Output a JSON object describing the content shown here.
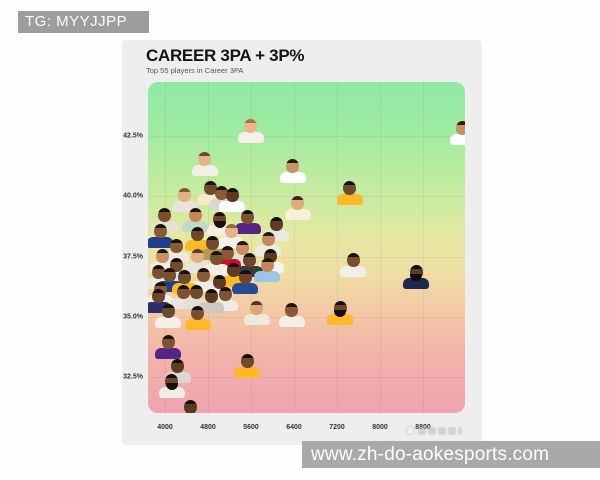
{
  "badge": {
    "text": "TG: MYYJJPP"
  },
  "header": {
    "title": "CAREER 3PA + 3P%",
    "subtitle": "Top 55 players in Career 3PA"
  },
  "url_bar": {
    "text": "www.zh-do-aokesports.com"
  },
  "colors": {
    "page_bg": "#fdfdfd",
    "card_bg": "#eeeeee",
    "badge_bg": "#9d9d9d",
    "url_bar_bg": "#a9a9a9",
    "gradient_top_green": "#8fe9a5",
    "gradient_mid_yellow": "#e5e8a2",
    "gradient_bottom_pink": "#f0a3b2"
  },
  "chart_data": {
    "type": "scatter",
    "title": "CAREER 3PA + 3P%",
    "subtitle": "Top 55 players in Career 3PA",
    "xlabel": "",
    "ylabel": "",
    "marker": "player-headshot",
    "grid": true,
    "legend": false,
    "xlim": [
      3684,
      9581
    ],
    "ylim": [
      31.0,
      44.75
    ],
    "x_tick_labels": [
      "4000",
      "4800",
      "5600",
      "6400",
      "7200",
      "8000",
      "8800"
    ],
    "x_ticks": [
      4000,
      4800,
      5600,
      6400,
      7200,
      8000,
      8800
    ],
    "y_tick_labels": [
      "42.5%",
      "40.0%",
      "37.5%",
      "35.0%",
      "32.5%"
    ],
    "y_ticks": [
      42.5,
      40.0,
      37.5,
      35.0,
      32.5
    ],
    "points": [
      {
        "x": 5600,
        "y": 42.9,
        "skin": "#e8b88a",
        "hair": "#a9743c",
        "jersey": "#f5f0e8"
      },
      {
        "x": 9540,
        "y": 42.8,
        "skin": "#c89064",
        "hair": "#2a1c12",
        "jersey": "#ffffff"
      },
      {
        "x": 4740,
        "y": 41.5,
        "skin": "#e5b489",
        "hair": "#6b4a2e",
        "jersey": "#f2efe9"
      },
      {
        "x": 6380,
        "y": 41.2,
        "skin": "#c79468",
        "hair": "#231a12",
        "jersey": "#ffffff"
      },
      {
        "x": 4370,
        "y": 40.0,
        "skin": "#e3b184",
        "hair": "#7a5b37",
        "jersey": "#e8e4dc"
      },
      {
        "x": 4840,
        "y": 40.3,
        "skin": "#6e4a2e",
        "hair": "#1c1410",
        "jersey": "#f7e9c9"
      },
      {
        "x": 5060,
        "y": 40.1,
        "skin": "#8a5a34",
        "hair": "#1c1410",
        "jersey": "#dcd6cc"
      },
      {
        "x": 5250,
        "y": 40.0,
        "skin": "#5c3a22",
        "hair": "#15100c",
        "jersey": "#ffffff"
      },
      {
        "x": 7440,
        "y": 40.3,
        "skin": "#6e4a2e",
        "hair": "#15100c",
        "jersey": "#fdb927"
      },
      {
        "x": 6470,
        "y": 39.7,
        "skin": "#e0ac78",
        "hair": "#3b2a1a",
        "jersey": "#f6efd9"
      },
      {
        "x": 4000,
        "y": 39.2,
        "skin": "#7a4f30",
        "hair": "#171210",
        "jersey": "#e6e1d6"
      },
      {
        "x": 4560,
        "y": 39.2,
        "skin": "#c2885c",
        "hair": "#201610",
        "jersey": "#bfd9c9"
      },
      {
        "x": 5020,
        "y": 39.0,
        "skin": "#6e452a",
        "hair": "#161110",
        "jersey": "#f3ede2",
        "beard": true
      },
      {
        "x": 5540,
        "y": 39.1,
        "skin": "#7c522f",
        "hair": "#171210",
        "jersey": "#552583"
      },
      {
        "x": 6070,
        "y": 38.8,
        "skin": "#5e3c24",
        "hair": "#141010",
        "jersey": "#e8e8e8"
      },
      {
        "x": 3910,
        "y": 38.5,
        "skin": "#8a5a34",
        "hair": "#1a1410",
        "jersey": "#1d3e8a"
      },
      {
        "x": 4610,
        "y": 38.4,
        "skin": "#6e472b",
        "hair": "#161110",
        "jersey": "#fdb927"
      },
      {
        "x": 5230,
        "y": 38.5,
        "skin": "#e6b287",
        "hair": "#8a6a42",
        "jersey": "#f4f1ea"
      },
      {
        "x": 5920,
        "y": 38.2,
        "skin": "#c28a5e",
        "hair": "#241a12",
        "jersey": "#edeae2"
      },
      {
        "x": 7500,
        "y": 37.3,
        "skin": "#7a4f30",
        "hair": "#191310",
        "jersey": "#f2efe8"
      },
      {
        "x": 8670,
        "y": 36.8,
        "skin": "#5e3c24",
        "hair": "#100d0b",
        "jersey": "#1d2951",
        "beard": true
      },
      {
        "x": 3960,
        "y": 37.5,
        "skin": "#c89064",
        "hair": "#221812",
        "jersey": "#efece4"
      },
      {
        "x": 4210,
        "y": 37.1,
        "skin": "#6e4a2e",
        "hair": "#161110",
        "jersey": "#dde5ee"
      },
      {
        "x": 4610,
        "y": 37.5,
        "skin": "#e2ae82",
        "hair": "#55402a",
        "jersey": "#e8e4da"
      },
      {
        "x": 4950,
        "y": 37.4,
        "skin": "#7c522f",
        "hair": "#171210",
        "jersey": "#f5efe3"
      },
      {
        "x": 5170,
        "y": 37.6,
        "skin": "#8a5a34",
        "hair": "#1b1510",
        "jersey": "#c8102e"
      },
      {
        "x": 5580,
        "y": 37.3,
        "skin": "#6e452a",
        "hair": "#151010",
        "jersey": "#3a3a3c"
      },
      {
        "x": 5970,
        "y": 37.5,
        "skin": "#5c3a22",
        "hair": "#131010",
        "jersey": "#f8f5ee"
      },
      {
        "x": 5900,
        "y": 37.1,
        "skin": "#c2885c",
        "hair": "#201711",
        "jersey": "#9ec4e8"
      },
      {
        "x": 4090,
        "y": 36.7,
        "skin": "#7a4f30",
        "hair": "#171210",
        "jersey": "#1d3e8a"
      },
      {
        "x": 4370,
        "y": 36.6,
        "skin": "#6e4a2e",
        "hair": "#161110",
        "jersey": "#fdb927"
      },
      {
        "x": 4710,
        "y": 36.7,
        "skin": "#8a5a34",
        "hair": "#1a1410",
        "jersey": "#efebe2"
      },
      {
        "x": 5020,
        "y": 36.4,
        "skin": "#5e3c24",
        "hair": "#141010",
        "jersey": "#f6f2ea"
      },
      {
        "x": 3870,
        "y": 35.8,
        "skin": "#6e452a",
        "hair": "#151010",
        "jersey": "#2c2f6e"
      },
      {
        "x": 4340,
        "y": 36.0,
        "skin": "#7c522f",
        "hair": "#171210",
        "jersey": "#e9e5dc"
      },
      {
        "x": 4860,
        "y": 35.8,
        "skin": "#5c3a22",
        "hair": "#131010",
        "jersey": "#cdc9c0"
      },
      {
        "x": 4060,
        "y": 35.2,
        "skin": "#6e4a2e",
        "hair": "#161110",
        "jersey": "#f4f0e8"
      },
      {
        "x": 4610,
        "y": 35.1,
        "skin": "#7a4f30",
        "hair": "#171210",
        "jersey": "#fdb927"
      },
      {
        "x": 5710,
        "y": 35.3,
        "skin": "#d9a677",
        "hair": "#4a3826",
        "jersey": "#efe9dc"
      },
      {
        "x": 6360,
        "y": 35.25,
        "skin": "#8a5a34",
        "hair": "#1b1510",
        "jersey": "#f2eee6"
      },
      {
        "x": 7260,
        "y": 35.3,
        "skin": "#6e452a",
        "hair": "#151010",
        "jersey": "#fdb927",
        "beard": true
      },
      {
        "x": 4060,
        "y": 33.9,
        "skin": "#7c522f",
        "hair": "#1a140f",
        "jersey": "#552583"
      },
      {
        "x": 5530,
        "y": 33.1,
        "skin": "#6e4a2e",
        "hair": "#100d0b",
        "jersey": "#fdb927"
      },
      {
        "x": 4240,
        "y": 32.9,
        "skin": "#5e3c24",
        "hair": "#141010",
        "jersey": "#dcd8ce"
      },
      {
        "x": 4130,
        "y": 32.3,
        "skin": "#6e452a",
        "hair": "#151010",
        "jersey": "#f1ede4",
        "beard": true
      },
      {
        "x": 4470,
        "y": 31.2,
        "skin": "#5c3a22",
        "hair": "#131010",
        "jersey": "#1d2951"
      },
      {
        "x": 4210,
        "y": 37.9,
        "skin": "#8a5a34",
        "hair": "#1a1410",
        "jersey": "#ede9e0"
      },
      {
        "x": 4890,
        "y": 38.0,
        "skin": "#6e4a2e",
        "hair": "#161110",
        "jersey": "#b49759"
      },
      {
        "x": 5450,
        "y": 37.8,
        "skin": "#c89064",
        "hair": "#231a12",
        "jersey": "#e4e0d6"
      },
      {
        "x": 3870,
        "y": 36.8,
        "skin": "#7a4f30",
        "hair": "#171210",
        "jersey": "#edeae0"
      },
      {
        "x": 5270,
        "y": 36.9,
        "skin": "#5e3c24",
        "hair": "#141010",
        "jersey": "#fdb927"
      },
      {
        "x": 5490,
        "y": 36.6,
        "skin": "#6e452a",
        "hair": "#151010",
        "jersey": "#274b8f"
      },
      {
        "x": 3910,
        "y": 36.1,
        "skin": "#8a5a34",
        "hair": "#1b1510",
        "jersey": "#f3efe7"
      },
      {
        "x": 4580,
        "y": 36.0,
        "skin": "#6e4a2e",
        "hair": "#161110",
        "jersey": "#e2ded4"
      },
      {
        "x": 5120,
        "y": 35.9,
        "skin": "#7c522f",
        "hair": "#171210",
        "jersey": "#efebe3"
      }
    ]
  }
}
